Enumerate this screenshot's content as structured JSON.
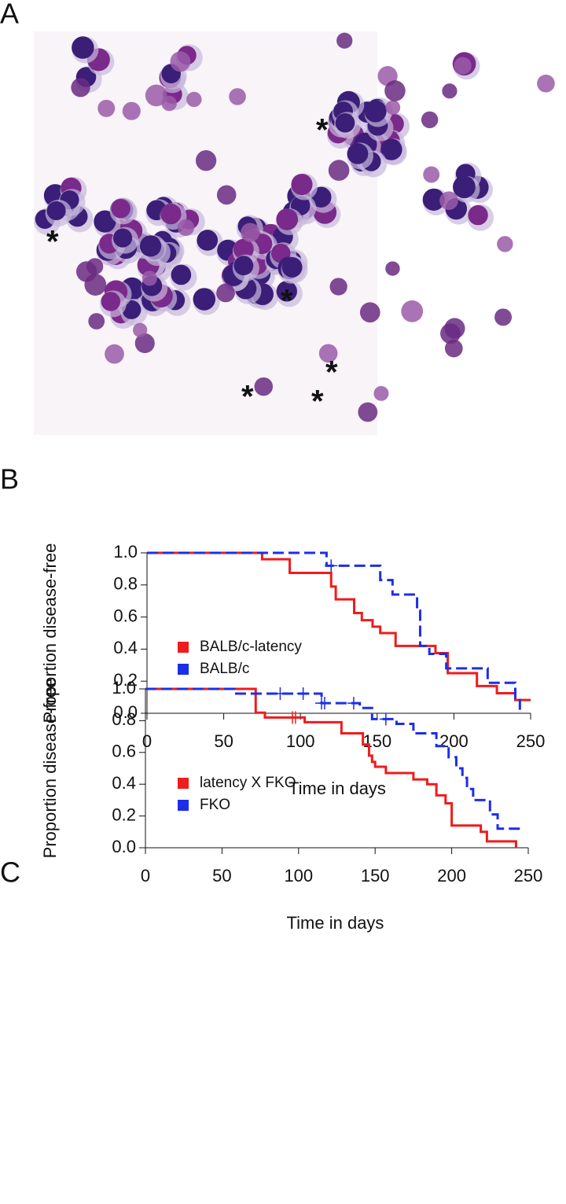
{
  "panel_a": {
    "label": "A",
    "annotations": [
      "*",
      "*",
      "*",
      "*",
      "*",
      "*"
    ]
  },
  "chart_data": [
    {
      "type": "line",
      "panel": "B",
      "ylabel": "Proportion disease-free",
      "xlabel": "Time in days",
      "xlim": [
        0,
        250
      ],
      "ylim": [
        0,
        1
      ],
      "xticks": [
        0,
        50,
        100,
        150,
        200,
        250
      ],
      "yticks": [
        {
          "value": 0,
          "label": "0.0"
        },
        {
          "value": 0.2,
          "label": "0.2"
        },
        {
          "value": 0.4,
          "label": "0.4"
        },
        {
          "value": 0.6,
          "label": "0.6"
        },
        {
          "value": 0.8,
          "label": "0.8"
        },
        {
          "value": 1,
          "label": "1.0"
        }
      ],
      "series": [
        {
          "name": "BALB/c-latency",
          "color": "#ee1c1c",
          "dashed": false,
          "x": [
            0,
            75,
            93,
            120,
            123,
            135,
            140,
            147,
            152,
            162,
            185,
            188,
            196,
            215,
            228,
            240,
            250
          ],
          "values": [
            1,
            0.96,
            0.875,
            0.79,
            0.71,
            0.625,
            0.58,
            0.54,
            0.5,
            0.42,
            0.42,
            0.375,
            0.25,
            0.17,
            0.125,
            0.083,
            0.083
          ],
          "censored": []
        },
        {
          "name": "BALB/c",
          "color": "#1c2ee8",
          "dashed": true,
          "x": [
            0,
            117,
            152,
            160,
            176,
            178,
            184,
            195,
            222,
            240,
            243
          ],
          "values": [
            1,
            0.92,
            0.83,
            0.74,
            0.64,
            0.42,
            0.37,
            0.28,
            0.19,
            0.09,
            0
          ],
          "censored": [
            120
          ]
        }
      ]
    },
    {
      "type": "line",
      "panel": "C",
      "ylabel": "Proportion disease-free",
      "xlabel": "Time in days",
      "xlim": [
        0,
        250
      ],
      "ylim": [
        0,
        1
      ],
      "xticks": [
        0,
        50,
        100,
        150,
        200,
        250
      ],
      "yticks": [
        {
          "value": 0,
          "label": "0.0"
        },
        {
          "value": 0.2,
          "label": "0.2"
        },
        {
          "value": 0.4,
          "label": "0.4"
        },
        {
          "value": 0.6,
          "label": "0.6"
        },
        {
          "value": 0.8,
          "label": "0.8"
        },
        {
          "value": 1,
          "label": "1.0"
        }
      ],
      "series": [
        {
          "name": "latency X FKO",
          "color": "#ee1c1c",
          "dashed": false,
          "x": [
            0,
            72,
            78,
            104,
            128,
            142,
            146,
            148,
            150,
            157,
            175,
            184,
            190,
            196,
            200,
            219,
            223,
            242
          ],
          "values": [
            1,
            0.85,
            0.82,
            0.79,
            0.72,
            0.65,
            0.58,
            0.54,
            0.51,
            0.47,
            0.43,
            0.4,
            0.33,
            0.28,
            0.14,
            0.1,
            0.04,
            0
          ],
          "censored": [
            96,
            98
          ]
        },
        {
          "name": "FKO",
          "color": "#1c2ee8",
          "dashed": true,
          "x": [
            0,
            58,
            115,
            140,
            148,
            164,
            175,
            190,
            198,
            203,
            207,
            210,
            214,
            225,
            230,
            245
          ],
          "values": [
            1,
            0.97,
            0.91,
            0.88,
            0.81,
            0.78,
            0.72,
            0.64,
            0.57,
            0.5,
            0.44,
            0.37,
            0.3,
            0.21,
            0.12,
            0.12
          ],
          "censored": [
            88,
            103,
            115,
            117,
            136,
            157
          ]
        }
      ]
    }
  ]
}
